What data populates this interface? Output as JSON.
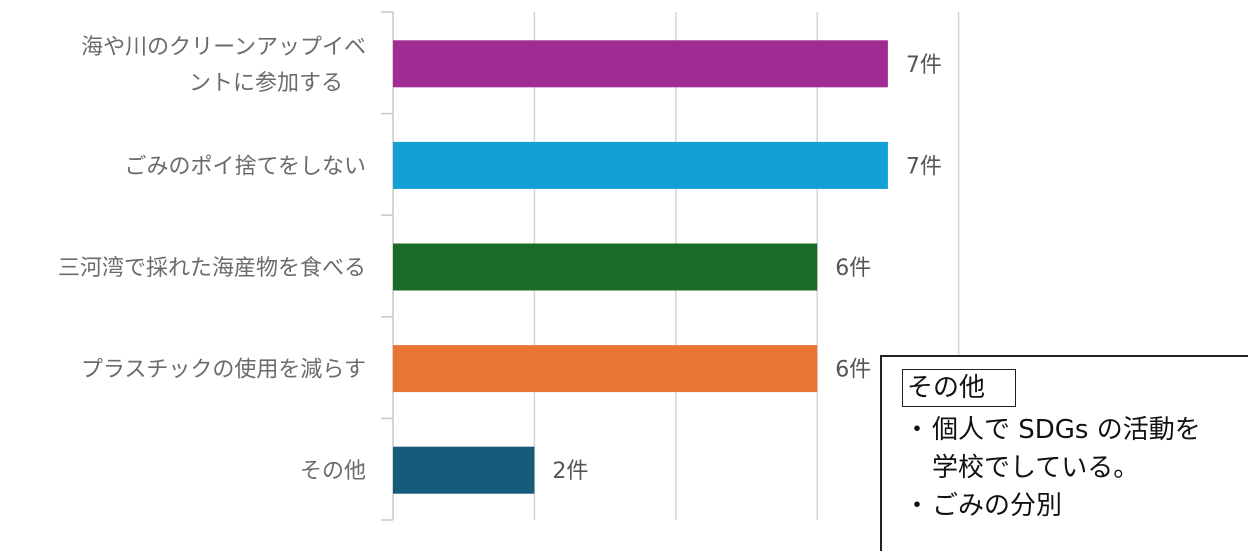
{
  "chart_data": {
    "type": "bar",
    "orientation": "horizontal",
    "categories": [
      [
        "海や川のクリーンアップイベ",
        "ントに参加する"
      ],
      [
        "ごみのポイ捨てをしない"
      ],
      [
        "三河湾で採れた海産物を食べる"
      ],
      [
        "プラスチックの使用を減らす"
      ],
      [
        "その他"
      ]
    ],
    "values": [
      7,
      7,
      6,
      6,
      2
    ],
    "value_labels": [
      "7件",
      "7件",
      "6件",
      "6件",
      "2件"
    ],
    "colors": [
      "#a02b93",
      "#12a0d6",
      "#1a6b26",
      "#e87533",
      "#175b7b"
    ],
    "xlim": [
      0,
      8
    ],
    "grid": true,
    "title": "",
    "xlabel": "",
    "ylabel": ""
  },
  "note": {
    "title": "その他",
    "items": [
      [
        "個人で SDGs の活動を",
        "学校でしている。"
      ],
      [
        "ごみの分別"
      ]
    ],
    "bullet": "・"
  }
}
